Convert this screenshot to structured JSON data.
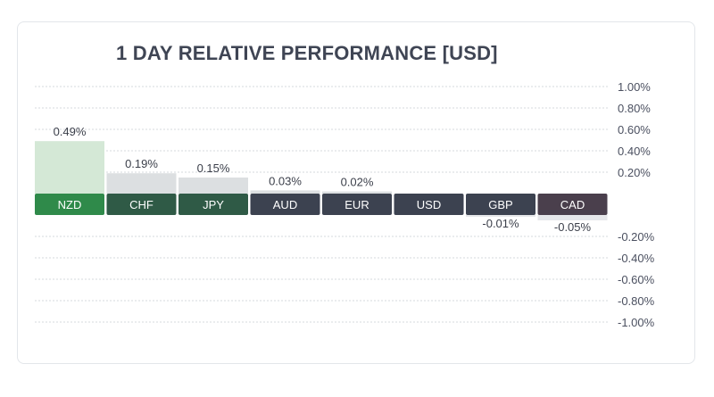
{
  "title": "1 DAY RELATIVE PERFORMANCE  [USD]",
  "colors": {
    "positive_bar": "#d4e8d6",
    "positive_bar_top": "#bcd8bf",
    "gray_bar": "#dcdfe1",
    "negative_bar": "#e6e7ea",
    "grid": "#d6d9de",
    "tick_text": "#4b5060",
    "label_text": "#3b3f4a"
  },
  "chart_data": {
    "type": "bar",
    "title": "1 DAY RELATIVE PERFORMANCE  [USD]",
    "categories": [
      "NZD",
      "CHF",
      "JPY",
      "AUD",
      "EUR",
      "USD",
      "GBP",
      "CAD"
    ],
    "values": [
      0.49,
      0.19,
      0.15,
      0.03,
      0.02,
      0,
      -0.01,
      -0.05
    ],
    "value_labels": [
      "0.49%",
      "0.19%",
      "0.15%",
      "0.03%",
      "0.02%",
      "",
      "-0.01%",
      "-0.05%"
    ],
    "ylim": [
      -1.0,
      1.0
    ],
    "positive_ticks": [
      1.0,
      0.8,
      0.6,
      0.4,
      0.2
    ],
    "negative_ticks": [
      -0.2,
      -0.4,
      -0.6,
      -0.8,
      -1.0
    ],
    "tick_labels_positive": [
      "1.00%",
      "0.80%",
      "0.60%",
      "0.40%",
      "0.20%"
    ],
    "tick_labels_negative": [
      "-0.20%",
      "-0.40%",
      "-0.60%",
      "-0.80%",
      "-1.00%"
    ],
    "grid": true,
    "label_colors": [
      "#2f8a4a",
      "#2f5a46",
      "#2f5a46",
      "#3c4250",
      "#3c4250",
      "#3c4250",
      "#3c4250",
      "#4a3f4c"
    ]
  }
}
